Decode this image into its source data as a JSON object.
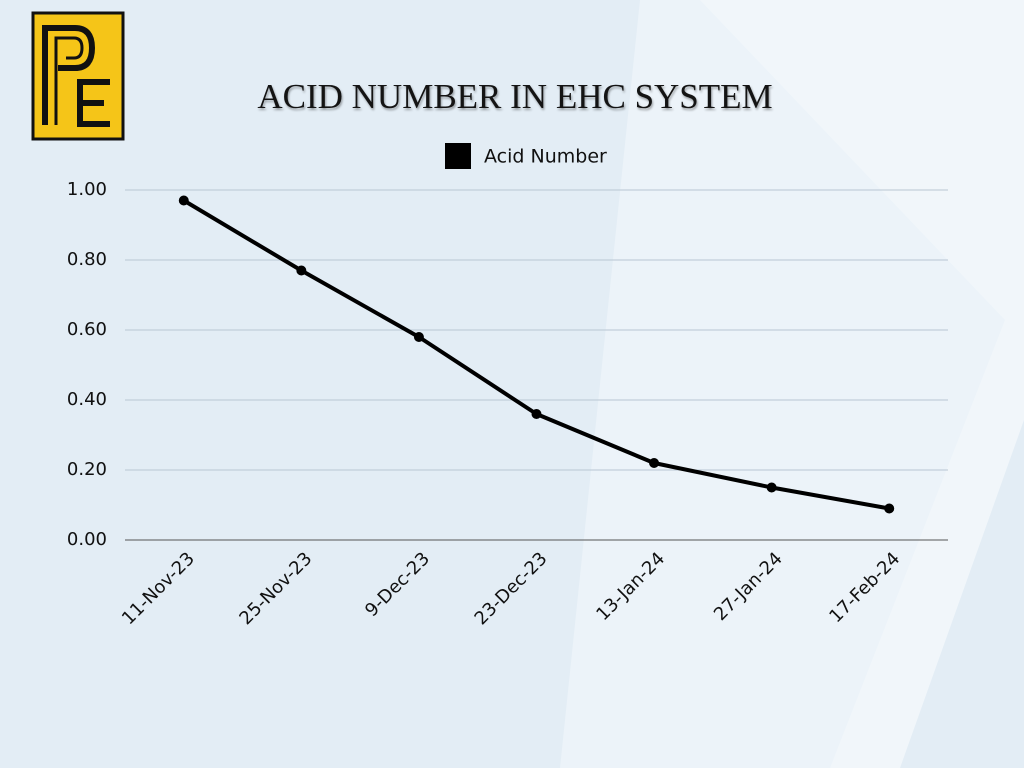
{
  "chart_data": {
    "type": "line",
    "title": "ACID NUMBER IN EHC SYSTEM",
    "categories": [
      "11-Nov-23",
      "25-Nov-23",
      "9-Dec-23",
      "23-Dec-23",
      "13-Jan-24",
      "27-Jan-24",
      "17-Feb-24"
    ],
    "series": [
      {
        "name": "Acid Number",
        "color": "#000000",
        "values": [
          0.97,
          0.77,
          0.58,
          0.36,
          0.22,
          0.15,
          0.09
        ]
      }
    ],
    "ylim": [
      0,
      1
    ],
    "yticks": [
      {
        "value": 0,
        "label": "0.00"
      },
      {
        "value": 0.2,
        "label": "0.20"
      },
      {
        "value": 0.4,
        "label": "0.40"
      },
      {
        "value": 0.6,
        "label": "0.60"
      },
      {
        "value": 0.8,
        "label": "0.80"
      },
      {
        "value": 1,
        "label": "1.00"
      }
    ],
    "grid": true,
    "legend": "top"
  }
}
